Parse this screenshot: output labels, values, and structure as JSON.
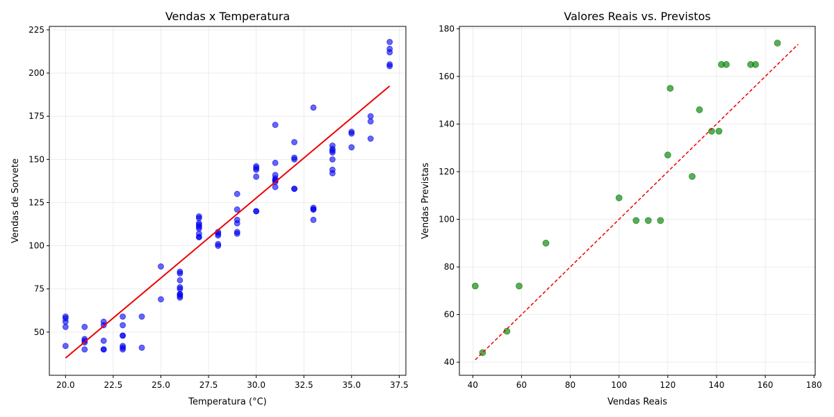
{
  "chart_data": [
    {
      "type": "scatter",
      "title": "Vendas x Temperatura",
      "xlabel": "Temperatura (°C)",
      "ylabel": "Vendas de Sorvete",
      "xlim": [
        19.15,
        37.85
      ],
      "ylim": [
        25,
        227
      ],
      "xticks": [
        20.0,
        22.5,
        25.0,
        27.5,
        30.0,
        32.5,
        35.0,
        37.5
      ],
      "xtick_labels": [
        "20.0",
        "22.5",
        "25.0",
        "27.5",
        "30.0",
        "32.5",
        "35.0",
        "37.5"
      ],
      "yticks": [
        50,
        75,
        100,
        125,
        150,
        175,
        200,
        225
      ],
      "ytick_labels": [
        "50",
        "75",
        "100",
        "125",
        "150",
        "175",
        "200",
        "225"
      ],
      "grid": true,
      "point_color": "#0000ee",
      "line_color": "#ee0000",
      "series": [
        {
          "kind": "points",
          "x": [
            20,
            20,
            20,
            20,
            20,
            21,
            21,
            21,
            21,
            21,
            22,
            22,
            22,
            22,
            22,
            23,
            23,
            23,
            23,
            23,
            23,
            23,
            24,
            24,
            25,
            25,
            26,
            26,
            26,
            26,
            26,
            26,
            26,
            26,
            26,
            27,
            27,
            27,
            27,
            27,
            27,
            27,
            27,
            27,
            28,
            28,
            28,
            28,
            28,
            29,
            29,
            29,
            29,
            29,
            29,
            30,
            30,
            30,
            30,
            30,
            30,
            31,
            31,
            31,
            31,
            31,
            31,
            31,
            31,
            32,
            32,
            32,
            32,
            32,
            33,
            33,
            33,
            33,
            33,
            34,
            34,
            34,
            34,
            34,
            34,
            34,
            35,
            35,
            35,
            36,
            36,
            36,
            37,
            37,
            37,
            37,
            37
          ],
          "y": [
            59,
            58,
            56,
            53,
            42,
            53,
            46,
            45,
            44,
            40,
            56,
            54,
            45,
            40,
            40,
            59,
            54,
            48,
            48,
            42,
            41,
            40,
            59,
            41,
            88,
            69,
            85,
            84,
            80,
            76,
            75,
            72,
            72,
            71,
            70,
            117,
            116,
            113,
            112,
            111,
            110,
            107,
            105,
            105,
            108,
            107,
            106,
            101,
            100,
            130,
            121,
            115,
            113,
            108,
            107,
            146,
            145,
            144,
            140,
            120,
            120,
            170,
            148,
            141,
            139,
            138,
            138,
            137,
            134,
            160,
            151,
            150,
            133,
            133,
            180,
            122,
            121,
            121,
            115,
            158,
            156,
            155,
            154,
            150,
            144,
            142,
            166,
            165,
            157,
            175,
            172,
            162,
            218,
            214,
            212,
            205,
            204
          ]
        },
        {
          "kind": "fit-line",
          "x": [
            20,
            37
          ],
          "y": [
            35,
            192.5
          ]
        }
      ]
    },
    {
      "type": "scatter",
      "title": "Valores Reais vs. Previstos",
      "xlabel": "Vendas Reais",
      "ylabel": "Vendas Previstas",
      "xlim": [
        34.5,
        180.5
      ],
      "ylim": [
        34.5,
        181
      ],
      "xticks": [
        40,
        60,
        80,
        100,
        120,
        140,
        160,
        180
      ],
      "xtick_labels": [
        "40",
        "60",
        "80",
        "100",
        "120",
        "140",
        "160",
        "180"
      ],
      "yticks": [
        40,
        60,
        80,
        100,
        120,
        140,
        160,
        180
      ],
      "ytick_labels": [
        "40",
        "60",
        "80",
        "100",
        "120",
        "140",
        "160",
        "180"
      ],
      "grid": true,
      "point_color": "#008000",
      "line_color": "#ee0000",
      "series": [
        {
          "kind": "points",
          "x": [
            41,
            44,
            54,
            59,
            70,
            100,
            107,
            112,
            117,
            120,
            121,
            130,
            133,
            138,
            141,
            142,
            144,
            154,
            156,
            165
          ],
          "y": [
            72,
            44,
            53,
            72,
            90,
            109,
            99.5,
            99.5,
            99.5,
            127,
            155,
            118,
            146,
            137,
            137,
            165,
            165,
            165,
            165,
            174
          ]
        },
        {
          "kind": "identity-line",
          "x": [
            41,
            173.5
          ],
          "y": [
            41,
            173.5
          ]
        }
      ]
    }
  ]
}
